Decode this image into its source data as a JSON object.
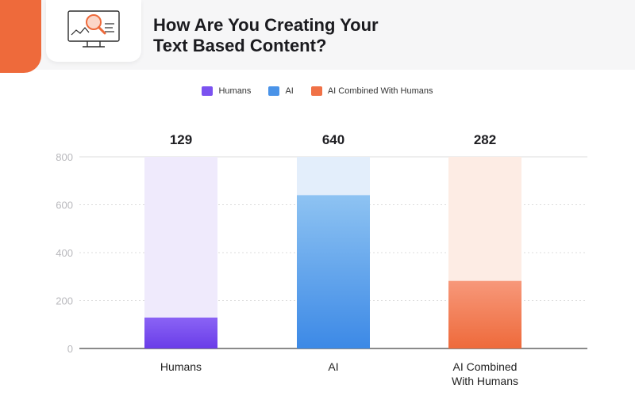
{
  "header": {
    "title_line1": "How Are You Creating Your",
    "title_line2": "Text Based Content?",
    "icon": "magnifier-monitor-icon"
  },
  "colors": {
    "accent": "#ee6a3b",
    "header_bg": "#f6f6f7",
    "humans": "#7b52f0",
    "ai": "#4a93e8",
    "combined": "#f07146"
  },
  "chart_data": {
    "type": "bar",
    "title": "How Are You Creating Your Text Based Content?",
    "categories": [
      "Humans",
      "AI",
      "AI Combined With Humans"
    ],
    "category_labels": [
      [
        "Humans"
      ],
      [
        "AI"
      ],
      [
        "AI Combined",
        "With Humans"
      ]
    ],
    "values": [
      129,
      640,
      282
    ],
    "data_labels": [
      "129",
      "640",
      "282"
    ],
    "legend": [
      "Humans",
      "AI",
      "AI Combined With Humans"
    ],
    "legend_position": "top-center",
    "ylim": [
      0,
      800
    ],
    "yticks": [
      0,
      200,
      400,
      600,
      800
    ],
    "grid": true,
    "xlabel": "",
    "ylabel": ""
  }
}
